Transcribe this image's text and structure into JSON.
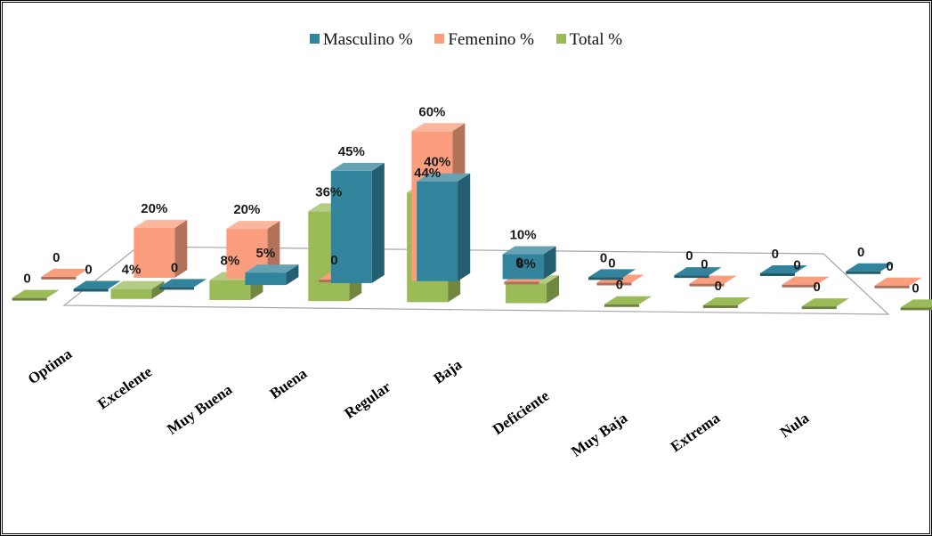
{
  "chart_data": {
    "type": "bar",
    "subtype": "3d-clustered-column",
    "title": "",
    "xlabel": "",
    "ylabel": "",
    "legend_position": "top-center",
    "grid": false,
    "categories": [
      "Optima",
      "Excelente",
      "Muy Buena",
      "Buena",
      "Regular",
      "Baja",
      "Deficiente",
      "Muy Baja",
      "Extrema",
      "Nula"
    ],
    "series": [
      {
        "name": "Masculino %",
        "color": "#31849B",
        "values": [
          0,
          0,
          5,
          45,
          40,
          10,
          0,
          0,
          0,
          0
        ],
        "labels": [
          "0",
          "0",
          "5%",
          "45%",
          "40%",
          "10%",
          "0",
          "0",
          "0",
          "0"
        ]
      },
      {
        "name": "Femenino %",
        "color": "#FA9E7E",
        "values": [
          0,
          20,
          20,
          0,
          60,
          0,
          0,
          0,
          0,
          0
        ],
        "labels": [
          "0",
          "20%",
          "20%",
          "0",
          "60%",
          "0",
          "0",
          "0",
          "0",
          "0"
        ]
      },
      {
        "name": "Total %",
        "color": "#9BBB59",
        "values": [
          0,
          4,
          8,
          36,
          44,
          8,
          0,
          0,
          0,
          0
        ],
        "labels": [
          "0",
          "4%",
          "8%",
          "36%",
          "44%",
          "8%",
          "0",
          "0",
          "0",
          "0"
        ]
      }
    ]
  }
}
